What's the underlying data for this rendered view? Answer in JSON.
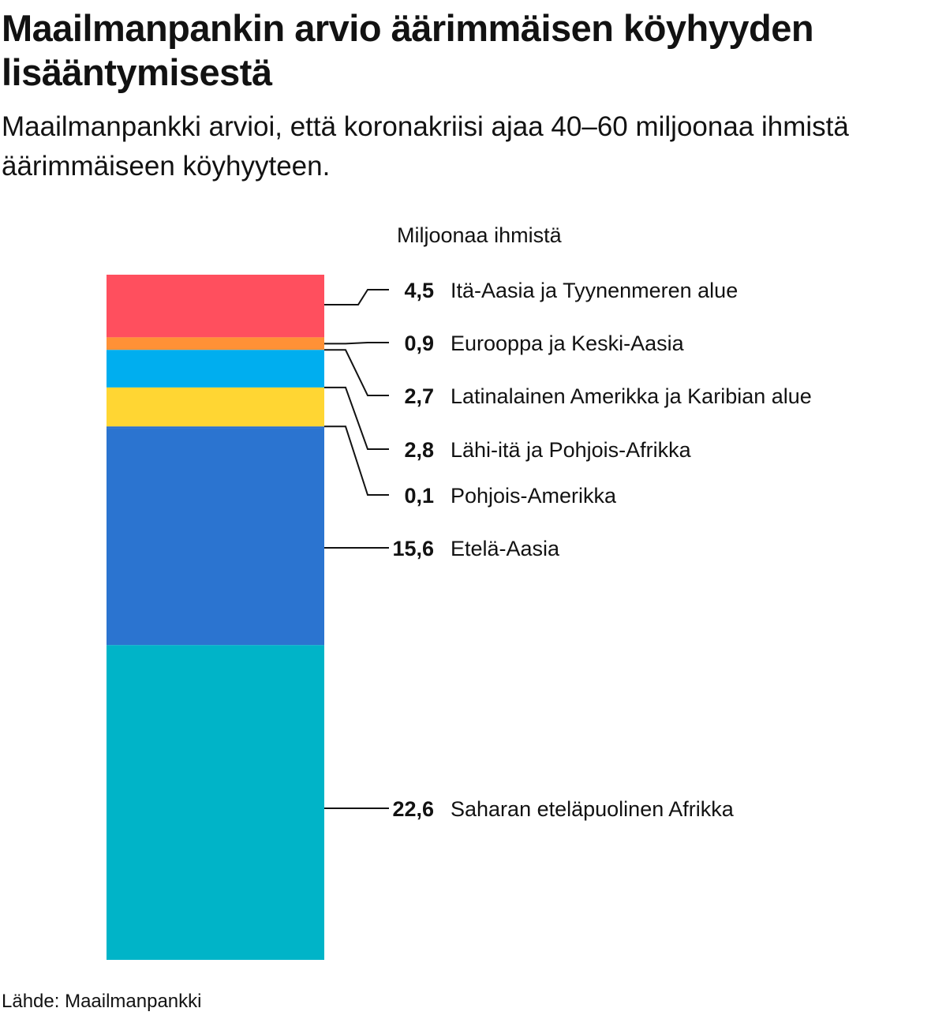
{
  "title": "Maailmanpankin arvio äärimmäisen köyhyyden lisääntymisestä",
  "subtitle": "Maailmanpankki arvioi, että koronakriisi ajaa 40–60 miljoonaa ihmistä äärimmäiseen köyhyyteen.",
  "unit_label": "Miljoonaa ihmistä",
  "source": "Lähde: Maailmanpankki",
  "chart_data": {
    "type": "bar",
    "stacked": true,
    "orientation": "vertical",
    "unit": "Miljoonaa ihmistä",
    "series": [
      {
        "name": "Itä-Aasia ja Tyynenmeren alue",
        "value": 4.5,
        "label": "4,5",
        "color": "#ff4f5e"
      },
      {
        "name": "Eurooppa ja Keski-Aasia",
        "value": 0.9,
        "label": "0,9",
        "color": "#ff9136"
      },
      {
        "name": "Latinalainen Amerikka ja Karibian alue",
        "value": 2.7,
        "label": "2,7",
        "color": "#00aeef"
      },
      {
        "name": "Lähi-itä ja Pohjois-Afrikka",
        "value": 2.8,
        "label": "2,8",
        "color": "#ffd633"
      },
      {
        "name": "Pohjois-Amerikka",
        "value": 0.1,
        "label": "0,1",
        "color": "#2a6fc9"
      },
      {
        "name": "Etelä-Aasia",
        "value": 15.6,
        "label": "15,6",
        "color": "#2b74d0"
      },
      {
        "name": "Saharan eteläpuolinen Afrikka",
        "value": 22.6,
        "label": "22,6",
        "color": "#00b4c8"
      }
    ]
  }
}
